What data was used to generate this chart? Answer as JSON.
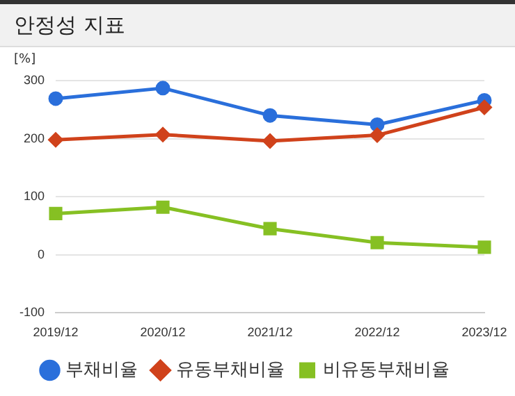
{
  "chart_data": {
    "type": "line",
    "title": "안정성 지표",
    "ylabel": "[%]",
    "categories": [
      "2019/12",
      "2020/12",
      "2021/12",
      "2022/12",
      "2023/12"
    ],
    "series": [
      {
        "name": "부채비율",
        "color": "#2a6fdb",
        "marker": "circle",
        "values": [
          269,
          287,
          240,
          224,
          266
        ]
      },
      {
        "name": "유동부채비율",
        "color": "#d0421b",
        "marker": "diamond",
        "values": [
          198,
          207,
          196,
          206,
          254
        ]
      },
      {
        "name": "비유동부채비율",
        "color": "#86c023",
        "marker": "square",
        "values": [
          71,
          82,
          45,
          21,
          13
        ]
      }
    ],
    "ylim": [
      -100,
      300
    ],
    "yticks": [
      -100,
      0,
      100,
      200,
      300
    ],
    "grid": "y",
    "legend": "bottom"
  }
}
